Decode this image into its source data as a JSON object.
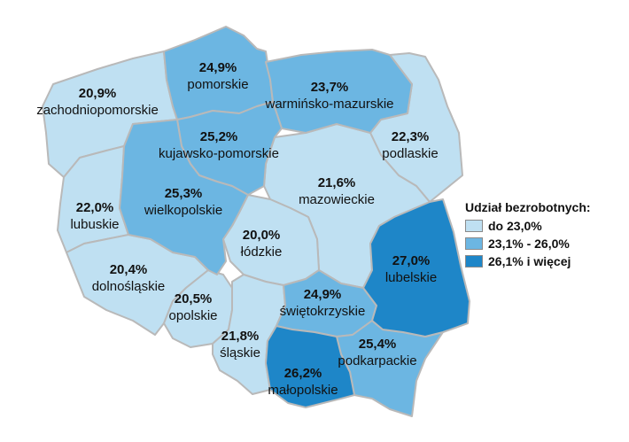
{
  "legend": {
    "title": "Udział bezrobotnych:",
    "items": [
      {
        "label": "do 23,0%",
        "color": "#bfe0f2"
      },
      {
        "label": "23,1% - 26,0%",
        "color": "#6cb6e2"
      },
      {
        "label": "26,1% i więcej",
        "color": "#1e86c8"
      }
    ]
  },
  "regions": {
    "zachodniopomorskie": {
      "value": "20,9%",
      "name": "zachodniopomorskie",
      "color": "#bfe0f2"
    },
    "pomorskie": {
      "value": "24,9%",
      "name": "pomorskie",
      "color": "#6cb6e2"
    },
    "warminsko_mazurskie": {
      "value": "23,7%",
      "name": "warmińsko-mazurskie",
      "color": "#6cb6e2"
    },
    "podlaskie": {
      "value": "22,3%",
      "name": "podlaskie",
      "color": "#bfe0f2"
    },
    "kujawsko_pomorskie": {
      "value": "25,2%",
      "name": "kujawsko-pomorskie",
      "color": "#6cb6e2"
    },
    "lubuskie": {
      "value": "22,0%",
      "name": "lubuskie",
      "color": "#bfe0f2"
    },
    "wielkopolskie": {
      "value": "25,3%",
      "name": "wielkopolskie",
      "color": "#6cb6e2"
    },
    "mazowieckie": {
      "value": "21,6%",
      "name": "mazowieckie",
      "color": "#bfe0f2"
    },
    "lodzkie": {
      "value": "20,0%",
      "name": "łódzkie",
      "color": "#bfe0f2"
    },
    "lubelskie": {
      "value": "27,0%",
      "name": "lubelskie",
      "color": "#1e86c8"
    },
    "dolnoslaskie": {
      "value": "20,4%",
      "name": "dolnośląskie",
      "color": "#bfe0f2"
    },
    "opolskie": {
      "value": "20,5%",
      "name": "opolskie",
      "color": "#bfe0f2"
    },
    "swietokrzyskie": {
      "value": "24,9%",
      "name": "świętokrzyskie",
      "color": "#6cb6e2"
    },
    "slaskie": {
      "value": "21,8%",
      "name": "śląskie",
      "color": "#bfe0f2"
    },
    "malopolskie": {
      "value": "26,2%",
      "name": "małopolskie",
      "color": "#1e86c8"
    },
    "podkarpackie": {
      "value": "25,4%",
      "name": "podkarpackie",
      "color": "#6cb6e2"
    }
  }
}
